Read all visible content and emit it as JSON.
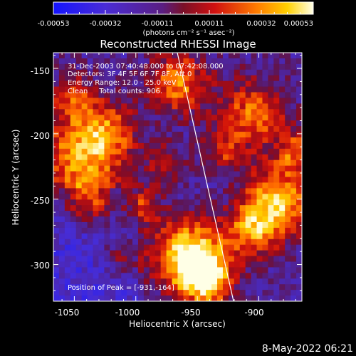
{
  "colorbar": {
    "tick_labels": [
      "-0.00053",
      "-0.00032",
      "-0.00011",
      "0.00011",
      "0.00032",
      "0.00053"
    ],
    "unit_label": "(photons cm⁻² s⁻¹ asec⁻²)"
  },
  "title": "Reconstructed RHESSI Image",
  "info": {
    "line1": "31-Dec-2003 07:40:48.000 to 07:42:08.000",
    "line2": "Detectors: 3F 4F 5F 6F 7F 8F, Att 0",
    "line3": "Energy Range: 12.0 - 25.0 keV",
    "line4": "Clean     Total counts: 906.",
    "peak": "Position of Peak = [-931,-164]"
  },
  "axes": {
    "x_label": "Heliocentric X (arcsec)",
    "y_label": "Heliocentric Y (arcsec)",
    "x_ticks": [
      "-1050",
      "-1000",
      "-950",
      "-900"
    ],
    "y_ticks": [
      "-150",
      "-200",
      "-250",
      "-300"
    ],
    "x_range": [
      -1067,
      -865
    ],
    "y_range": [
      -328,
      -138
    ]
  },
  "footer_date": "8-May-2022 06:21",
  "colors": {
    "background": "#000000",
    "limb_line": "#ffffff"
  }
}
